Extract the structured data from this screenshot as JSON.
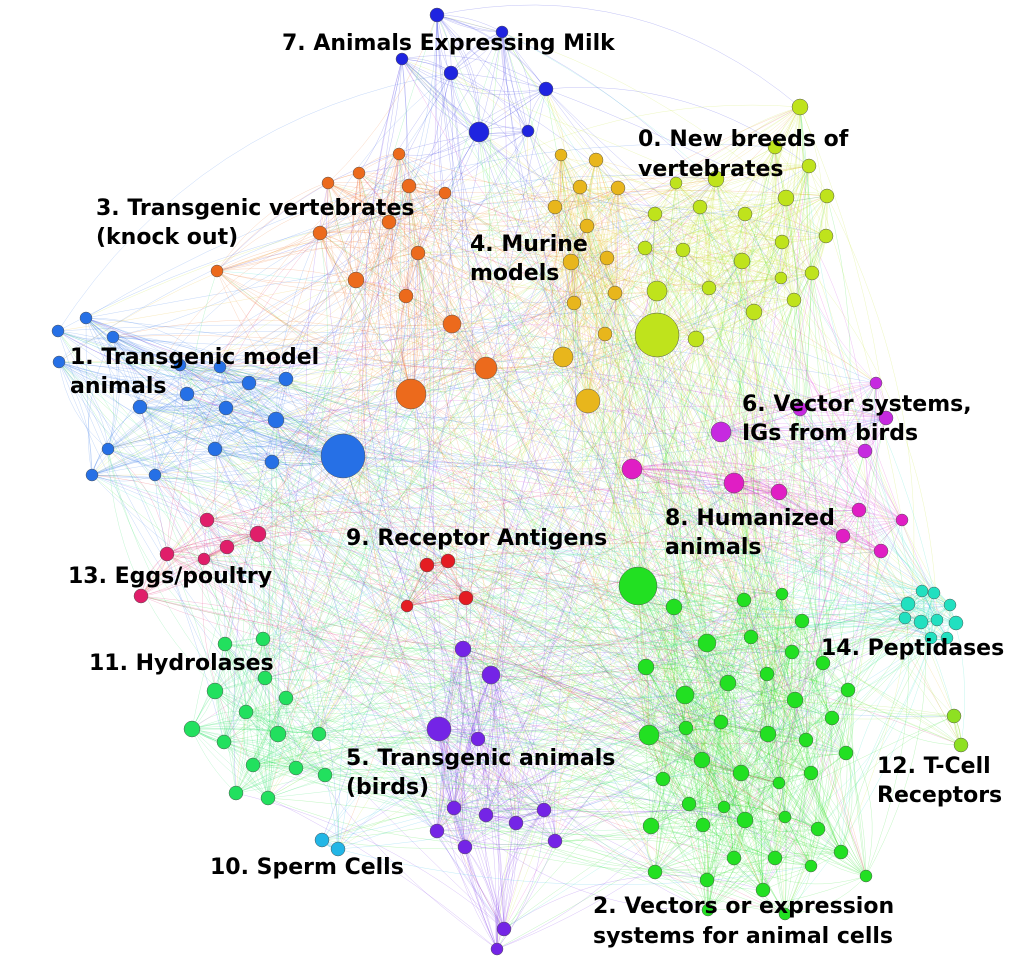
{
  "clusters": [
    {
      "id": "c0",
      "label_lines": [
        "0. New breeds of",
        "vertebrates"
      ],
      "color": "#bfe31c"
    },
    {
      "id": "c1",
      "label_lines": [
        "1. Transgenic model",
        "animals"
      ],
      "color": "#2670e6"
    },
    {
      "id": "c2",
      "label_lines": [
        "2. Vectors or expression",
        "systems for animal cells"
      ],
      "color": "#22e022"
    },
    {
      "id": "c3",
      "label_lines": [
        "3. Transgenic vertebrates",
        "(knock out)"
      ],
      "color": "#ec6a1c"
    },
    {
      "id": "c4",
      "label_lines": [
        "4. Murine",
        "models"
      ],
      "color": "#e8b61c"
    },
    {
      "id": "c5",
      "label_lines": [
        "5. Transgenic animals",
        "(birds)"
      ],
      "color": "#7424e6"
    },
    {
      "id": "c6",
      "label_lines": [
        "6. Vector systems,",
        "IGs from birds"
      ],
      "color": "#c62ae0"
    },
    {
      "id": "c7",
      "label_lines": [
        "7. Animals Expressing Milk"
      ],
      "color": "#1f24e0"
    },
    {
      "id": "c8",
      "label_lines": [
        "8. Humanized",
        "animals"
      ],
      "color": "#e01ec4"
    },
    {
      "id": "c9",
      "label_lines": [
        "9. Receptor Antigens"
      ],
      "color": "#e41c22"
    },
    {
      "id": "c10",
      "label_lines": [
        "10. Sperm Cells"
      ],
      "color": "#22b6e6"
    },
    {
      "id": "c11",
      "label_lines": [
        "11. Hydrolases"
      ],
      "color": "#22e05e"
    },
    {
      "id": "c12",
      "label_lines": [
        "12. T-Cell",
        "Receptors"
      ],
      "color": "#8ee022"
    },
    {
      "id": "c13",
      "label_lines": [
        "13. Eggs/poultry"
      ],
      "color": "#e01e6a"
    },
    {
      "id": "c14",
      "label_lines": [
        "14. Peptidases"
      ],
      "color": "#22e0c0"
    }
  ]
}
